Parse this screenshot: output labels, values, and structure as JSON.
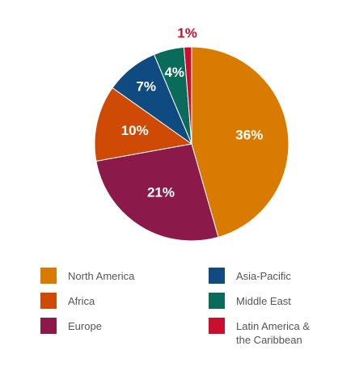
{
  "chart_data": {
    "type": "pie",
    "categories": [
      "North America",
      "Europe",
      "Africa",
      "Asia-Pacific",
      "Middle East",
      "Latin America & the Caribbean"
    ],
    "values": [
      36,
      21,
      10,
      7,
      4,
      1
    ],
    "value_labels": [
      "36%",
      "21%",
      "10%",
      "7%",
      "4%",
      "1%"
    ],
    "colors": [
      "#d97b00",
      "#8b1a4a",
      "#cf4a04",
      "#0f4a80",
      "#0b6b5b",
      "#c8102e"
    ]
  }
}
